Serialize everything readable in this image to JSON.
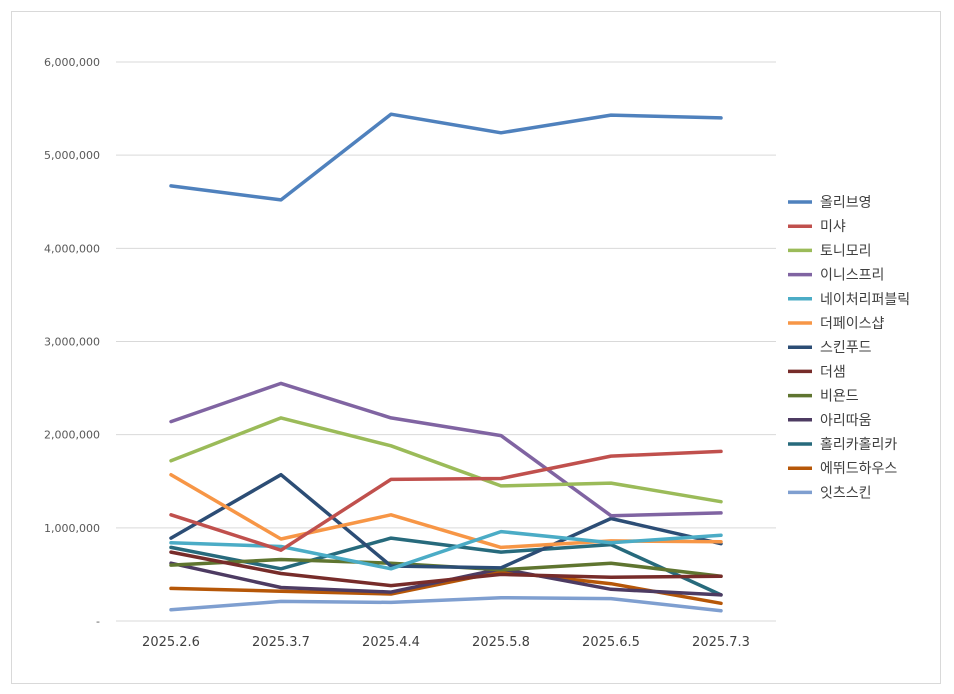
{
  "chart_data": {
    "type": "line",
    "title": "",
    "xlabel": "",
    "ylabel": "",
    "ylim": [
      0,
      6000000
    ],
    "y_ticks": [
      0,
      1000000,
      2000000,
      3000000,
      4000000,
      5000000,
      6000000
    ],
    "y_tick_labels": [
      "-",
      "1,000,000",
      "2,000,000",
      "3,000,000",
      "4,000,000",
      "5,000,000",
      "6,000,000"
    ],
    "grid": true,
    "legend_position": "right",
    "categories": [
      "2025.2.6",
      "2025.3.7",
      "2025.4.4",
      "2025.5.8",
      "2025.6.5",
      "2025.7.3"
    ],
    "series": [
      {
        "name": "올리브영",
        "color": "#4f81bd",
        "values": [
          4670000,
          4520000,
          5440000,
          5240000,
          5430000,
          5400000
        ]
      },
      {
        "name": "미샤",
        "color": "#c0504d",
        "values": [
          1140000,
          760000,
          1520000,
          1530000,
          1770000,
          1820000
        ]
      },
      {
        "name": "토니모리",
        "color": "#9bbb59",
        "values": [
          1720000,
          2180000,
          1880000,
          1450000,
          1480000,
          1280000
        ]
      },
      {
        "name": "이니스프리",
        "color": "#8064a2",
        "values": [
          2140000,
          2550000,
          2180000,
          1990000,
          1130000,
          1160000
        ]
      },
      {
        "name": "네이처리퍼블릭",
        "color": "#4bacc6",
        "values": [
          840000,
          800000,
          560000,
          960000,
          840000,
          920000
        ]
      },
      {
        "name": "더페이스샵",
        "color": "#f79646",
        "values": [
          1570000,
          880000,
          1140000,
          790000,
          860000,
          850000
        ]
      },
      {
        "name": "스킨푸드",
        "color": "#2c4d75",
        "values": [
          890000,
          1570000,
          590000,
          570000,
          1100000,
          830000
        ]
      },
      {
        "name": "더샘",
        "color": "#772c2a",
        "values": [
          740000,
          510000,
          380000,
          500000,
          470000,
          480000
        ]
      },
      {
        "name": "비욘드",
        "color": "#5f7530",
        "values": [
          600000,
          660000,
          620000,
          550000,
          620000,
          480000
        ]
      },
      {
        "name": "아리따움",
        "color": "#4d3b62",
        "values": [
          620000,
          360000,
          310000,
          560000,
          340000,
          280000
        ]
      },
      {
        "name": "홀리카홀리카",
        "color": "#276a7c",
        "values": [
          790000,
          560000,
          890000,
          740000,
          820000,
          280000
        ]
      },
      {
        "name": "에뛰드하우스",
        "color": "#b65708",
        "values": [
          350000,
          320000,
          290000,
          530000,
          400000,
          190000
        ]
      },
      {
        "name": "잇츠스킨",
        "color": "#7f9fd0",
        "values": [
          120000,
          210000,
          200000,
          250000,
          240000,
          110000
        ]
      }
    ]
  }
}
